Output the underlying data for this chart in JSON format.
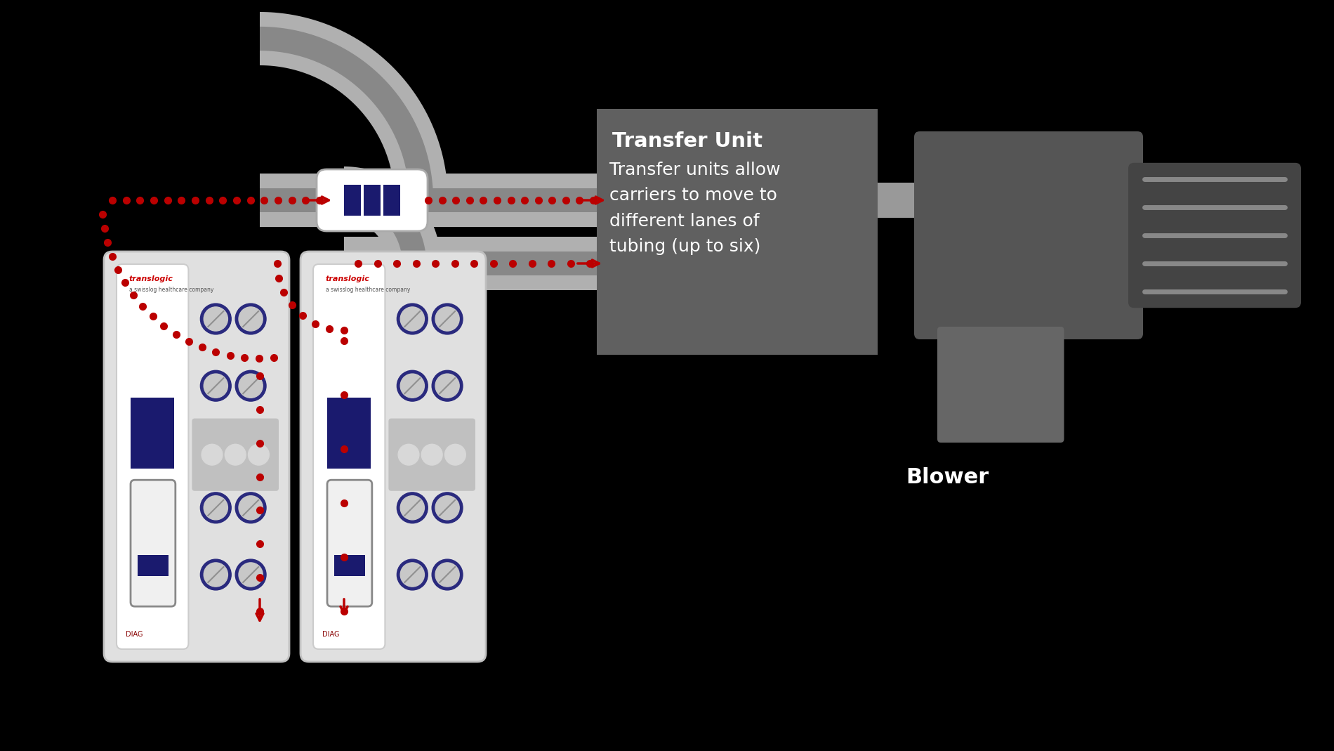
{
  "bg_color": "#000000",
  "tube_color": "#b0b0b0",
  "tube_dark": "#888888",
  "tube_light": "#cccccc",
  "carrier_body": "#ffffff",
  "carrier_stripe": "#1a1a6e",
  "label_box_color": "#606060",
  "label_title": "Transfer Unit",
  "label_body": "Transfer units allow\ncarriers to move to\ndifferent lanes of\ntubing (up to six)",
  "blower_label": "Blower",
  "arrow_color": "#bb0000",
  "station_screen_color": "#1a1a6e",
  "station_circle_outer": "#2a2a7e",
  "station_circle_inner": "#c8c8c8",
  "red_logo_color": "#cc0000",
  "label_text_color": "#ffffff",
  "fig_w": 19.0,
  "fig_h": 10.69,
  "dpi": 100
}
